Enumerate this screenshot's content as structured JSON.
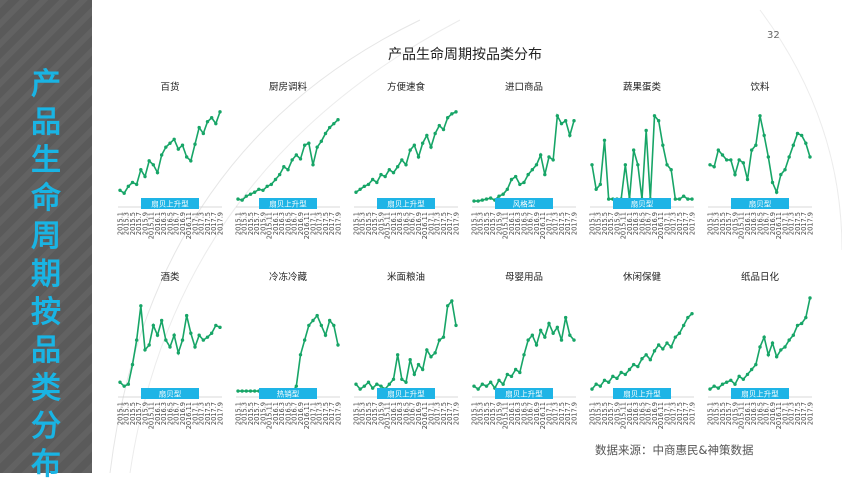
{
  "sidebar": {
    "title_chars": [
      "产",
      "品",
      "生",
      "命",
      "周",
      "期",
      "按",
      "品",
      "类",
      "分",
      "布"
    ]
  },
  "page_number": "32",
  "main_title": "产品生命周期按品类分布",
  "source": "数据来源：中商惠民&神策数据",
  "colors": {
    "line": "#17a567",
    "tag": "#1eb4e6",
    "sidebar_bg": "#5a5a5a",
    "sidebar_text": "#19b4e4"
  },
  "x_tick_labels": [
    "2015.1",
    "2015.3",
    "2015.5",
    "2015.7",
    "2015.9",
    "2015.11",
    "2016.1",
    "2016.3",
    "2016.5",
    "2016.7",
    "2016.9",
    "2016.11",
    "2017.1",
    "2017.3",
    "2017.5",
    "2017.7",
    "2017.9"
  ],
  "chart_data": [
    {
      "type": "line",
      "title": "百货",
      "tag": "扇贝上升型",
      "values": [
        14,
        11,
        18,
        22,
        20,
        35,
        28,
        44,
        40,
        32,
        50,
        58,
        62,
        66,
        56,
        60,
        48,
        44,
        61,
        78,
        72,
        84,
        88,
        82,
        94
      ]
    },
    {
      "type": "line",
      "title": "厨房调料",
      "tag": "扇贝上升型",
      "values": [
        5,
        4,
        8,
        10,
        12,
        15,
        14,
        18,
        20,
        25,
        30,
        38,
        35,
        45,
        50,
        46,
        60,
        62,
        40,
        58,
        64,
        72,
        78,
        82,
        86
      ]
    },
    {
      "type": "line",
      "title": "方便速食",
      "tag": "扇贝上升型",
      "values": [
        12,
        15,
        18,
        20,
        25,
        22,
        30,
        28,
        35,
        32,
        38,
        45,
        40,
        55,
        60,
        48,
        62,
        70,
        58,
        72,
        80,
        76,
        88,
        92,
        94
      ]
    },
    {
      "type": "line",
      "title": "进口商品",
      "tag": "风格型",
      "values": [
        3,
        3,
        4,
        5,
        6,
        4,
        8,
        10,
        15,
        25,
        28,
        20,
        22,
        30,
        35,
        40,
        50,
        30,
        48,
        45,
        90,
        82,
        85,
        70,
        85
      ]
    },
    {
      "type": "line",
      "title": "蔬果蛋类",
      "tag": "扇贝型",
      "values": [
        40,
        15,
        20,
        65,
        5,
        5,
        5,
        5,
        40,
        5,
        55,
        40,
        5,
        75,
        5,
        90,
        85,
        60,
        40,
        35,
        5,
        5,
        8,
        5,
        5
      ]
    },
    {
      "type": "line",
      "title": "饮料",
      "tag": "扇贝型",
      "values": [
        40,
        38,
        55,
        50,
        45,
        45,
        30,
        45,
        42,
        25,
        55,
        60,
        90,
        70,
        48,
        22,
        12,
        30,
        35,
        48,
        60,
        72,
        70,
        62,
        48
      ]
    },
    {
      "type": "line",
      "title": "酒类",
      "tag": "扇贝型",
      "values": [
        12,
        8,
        10,
        30,
        55,
        90,
        45,
        50,
        70,
        60,
        75,
        55,
        48,
        60,
        42,
        55,
        80,
        62,
        48,
        60,
        55,
        58,
        62,
        70,
        68
      ]
    },
    {
      "type": "line",
      "title": "冷冻冷藏",
      "tag": "热销型",
      "values": [
        3,
        3,
        3,
        3,
        3,
        3,
        3,
        3,
        3,
        3,
        3,
        3,
        3,
        2,
        8,
        40,
        55,
        70,
        75,
        80,
        70,
        60,
        75,
        70,
        50
      ]
    },
    {
      "type": "line",
      "title": "米面粮油",
      "tag": "扇贝上升型",
      "values": [
        10,
        5,
        8,
        12,
        6,
        10,
        8,
        5,
        10,
        15,
        40,
        15,
        12,
        35,
        20,
        30,
        25,
        45,
        38,
        42,
        55,
        58,
        90,
        95,
        70
      ]
    },
    {
      "type": "line",
      "title": "母婴用品",
      "tag": "扇贝上升型",
      "values": [
        8,
        5,
        10,
        8,
        12,
        6,
        14,
        10,
        20,
        18,
        25,
        22,
        40,
        55,
        60,
        50,
        65,
        58,
        72,
        62,
        68,
        55,
        78,
        60,
        55
      ]
    },
    {
      "type": "line",
      "title": "休闲保健",
      "tag": "扇贝上升型",
      "values": [
        5,
        10,
        8,
        14,
        12,
        18,
        16,
        22,
        20,
        25,
        30,
        28,
        36,
        40,
        35,
        44,
        50,
        46,
        52,
        48,
        58,
        62,
        70,
        78,
        82
      ]
    },
    {
      "type": "line",
      "title": "纸品日化",
      "tag": "扇贝上升型",
      "values": [
        5,
        8,
        6,
        10,
        12,
        14,
        10,
        18,
        15,
        20,
        25,
        30,
        48,
        58,
        40,
        52,
        38,
        45,
        48,
        55,
        60,
        70,
        72,
        78,
        98
      ]
    }
  ]
}
